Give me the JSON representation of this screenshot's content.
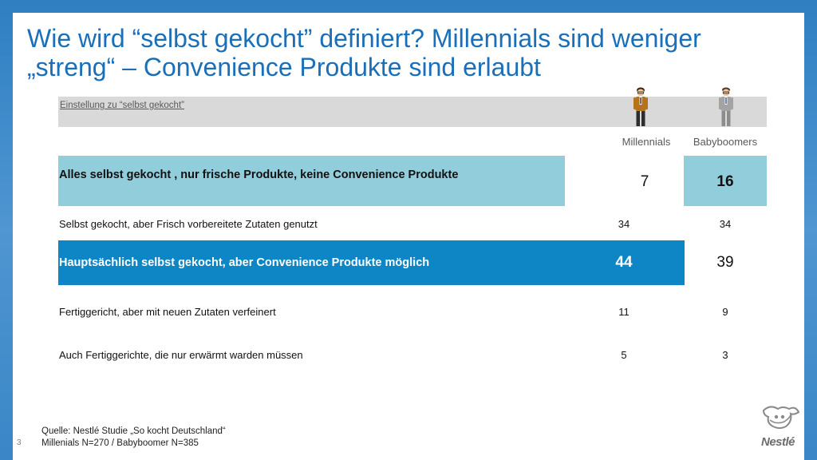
{
  "title": {
    "line1": "Wie wird “selbst gekocht” definiert? Millennials sind weniger",
    "line2": "„streng“ – Convenience Produkte sind erlaubt"
  },
  "table": {
    "header_label": "Einstellung zu “selbst gekocht”",
    "columns": [
      "Millennials",
      "Babyboomers"
    ],
    "rows": [
      {
        "label": "Alles selbst gekocht , nur frische Produkte, keine Convenience Produkte",
        "millennials": "7",
        "babyboomers": "16"
      },
      {
        "label": "Selbst gekocht, aber Frisch vorbereitete Zutaten genutzt",
        "millennials": "34",
        "babyboomers": "34"
      },
      {
        "label": "Hauptsächlich selbst gekocht, aber Convenience Produkte möglich",
        "millennials": "44",
        "babyboomers": "39"
      },
      {
        "label": "Fertiggericht, aber mit neuen Zutaten verfeinert",
        "millennials": "11",
        "babyboomers": "9"
      },
      {
        "label": "Auch Fertiggerichte, die nur erwärmt warden müssen",
        "millennials": "5",
        "babyboomers": "3"
      }
    ]
  },
  "source": {
    "line1": "Quelle: Nestlé Studie „So kocht Deutschland“",
    "line2": "Millenials N=270 / Babyboomer N=385"
  },
  "page_number": "3",
  "logo_text": "Nestlé",
  "colors": {
    "title": "#1a6fb8",
    "light_blue": "#92cddc",
    "dark_blue": "#0e86c6",
    "header_grey": "#d9d9d9"
  },
  "icons": [
    "millennial-person-icon",
    "babyboomer-person-icon",
    "nestle-nest-icon"
  ]
}
